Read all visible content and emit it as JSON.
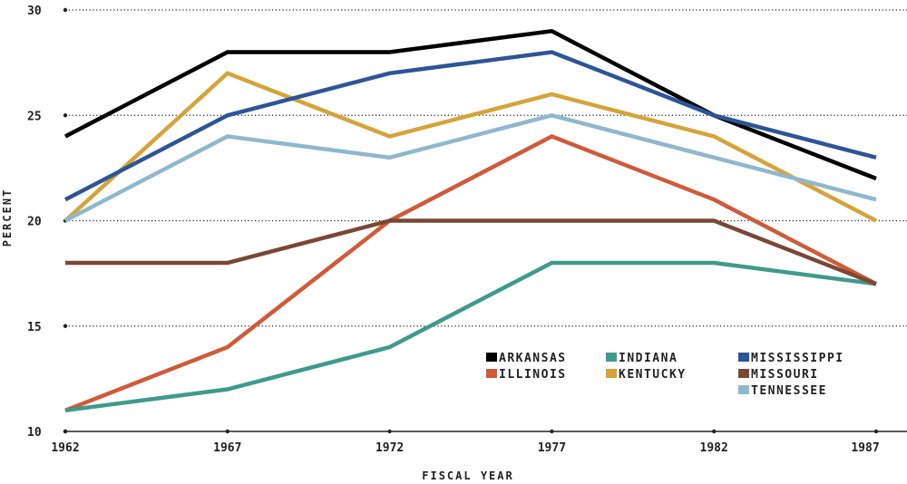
{
  "chart_data": {
    "type": "line",
    "xlabel": "FISCAL YEAR",
    "ylabel": "PERCENT",
    "x": [
      "1962",
      "1967",
      "1972",
      "1977",
      "1982",
      "1987"
    ],
    "yticks": [
      "10",
      "15",
      "20",
      "25",
      "30"
    ],
    "ylim": [
      10,
      30
    ],
    "grid": "horizontal dotted",
    "legend_position": "bottom-right",
    "series": [
      {
        "name": "ARKANSAS",
        "color": "#000000",
        "values": [
          24,
          28,
          28,
          29,
          25,
          22
        ]
      },
      {
        "name": "ILLINOIS",
        "color": "#d05a3a",
        "values": [
          11,
          14,
          20,
          24,
          21,
          17
        ]
      },
      {
        "name": "INDIANA",
        "color": "#3f9a8c",
        "values": [
          11,
          12,
          14,
          18,
          18,
          17
        ]
      },
      {
        "name": "KENTUCKY",
        "color": "#d4a43a",
        "values": [
          20,
          27,
          24,
          26,
          24,
          20
        ]
      },
      {
        "name": "MISSISSIPPI",
        "color": "#2d5596",
        "values": [
          21,
          25,
          27,
          28,
          25,
          23
        ]
      },
      {
        "name": "MISSOURI",
        "color": "#7a4736",
        "values": [
          18,
          18,
          20,
          20,
          20,
          17
        ]
      },
      {
        "name": "TENNESSEE",
        "color": "#8fb8cc",
        "values": [
          20,
          24,
          23,
          25,
          23,
          21
        ]
      }
    ]
  }
}
